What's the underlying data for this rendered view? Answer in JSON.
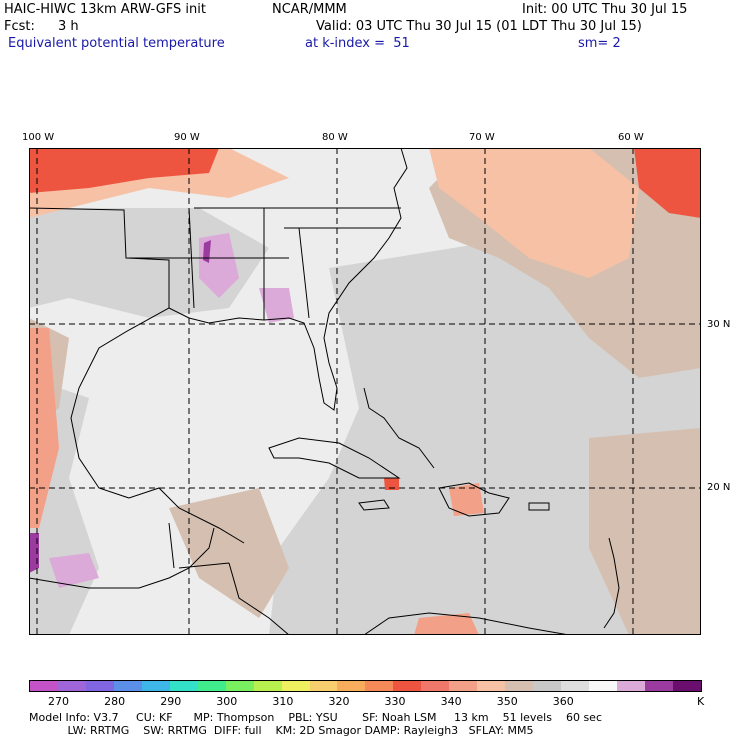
{
  "header": {
    "model": "HAIC-HIWC 13km ARW-GFS init",
    "org": "NCAR/MMM",
    "init": "Init: 00 UTC Thu 30 Jul 15",
    "fcst_label": "Fcst:",
    "fcst_value": "3 h",
    "valid": "Valid: 03 UTC Thu 30 Jul 15 (01 LDT Thu 30 Jul 15)",
    "field": "Equivalent potential temperature",
    "level": "at k-index =  51",
    "smoothing": "sm= 2"
  },
  "map": {
    "lon_labels": [
      "100 W",
      "90 W",
      "80 W",
      "70 W",
      "60 W"
    ],
    "lat_labels": [
      "30 N",
      "20 N"
    ],
    "colors": {
      "ocean_light": "#ededed",
      "ocean_gray": "#d4d4d4",
      "tan": "#d5bfb0",
      "peach": "#f6c1a5",
      "salmon": "#f2a088",
      "red": "#ee5540",
      "lavender": "#dcaad9",
      "purple": "#9b3ba0",
      "grid_line": "#000000",
      "coast": "#000000"
    }
  },
  "colorbar": {
    "colors": [
      "#c453c7",
      "#a066d9",
      "#8066e0",
      "#5c8fe8",
      "#3fb6e8",
      "#33e0c8",
      "#40ec8c",
      "#78f060",
      "#b8f050",
      "#eef060",
      "#f7cf6e",
      "#f7ad5c",
      "#f58a58",
      "#ee5540",
      "#f0786a",
      "#f2a088",
      "#f6c1a5",
      "#d5bfb0",
      "#c8c8c8",
      "#dedede",
      "#f7f7f7",
      "#dcaad9",
      "#9b3ba0",
      "#6a0f6e"
    ],
    "labels": [
      "270",
      "280",
      "290",
      "300",
      "310",
      "320",
      "330",
      "340",
      "350",
      "360"
    ],
    "units": "K"
  },
  "footer": {
    "line1": "Model Info: V3.7     CU: KF      MP: Thompson    PBL: YSU       SF: Noah LSM     13 km    51 levels    60 sec",
    "line2": "           LW: RRTMG    SW: RRTMG  DIFF: full    KM: 2D Smagor DAMP: Rayleigh3   SFLAY: MM5"
  }
}
